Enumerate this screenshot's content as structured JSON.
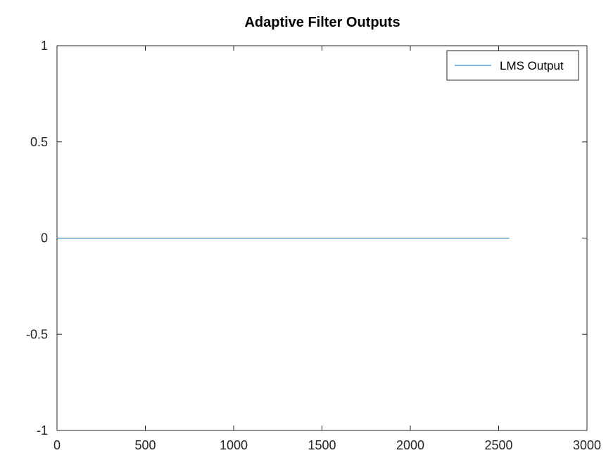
{
  "chart_data": {
    "type": "line",
    "title": "Adaptive Filter Outputs",
    "xlabel": "",
    "ylabel": "",
    "xlim": [
      0,
      3000
    ],
    "ylim": [
      -1,
      1
    ],
    "x_ticks": [
      0,
      500,
      1000,
      1500,
      2000,
      2500,
      3000
    ],
    "y_ticks": [
      -1,
      -0.5,
      0,
      0.5,
      1
    ],
    "x_tick_labels": [
      "0",
      "500",
      "1000",
      "1500",
      "2000",
      "2500",
      "3000"
    ],
    "y_tick_labels": [
      "-1",
      "-0.5",
      "0",
      "0.5",
      "1"
    ],
    "grid": false,
    "legend_position": "top-right",
    "series": [
      {
        "name": "LMS Output",
        "color": "#0072bd",
        "x": [
          1,
          2560
        ],
        "values": [
          0,
          0
        ]
      }
    ]
  }
}
